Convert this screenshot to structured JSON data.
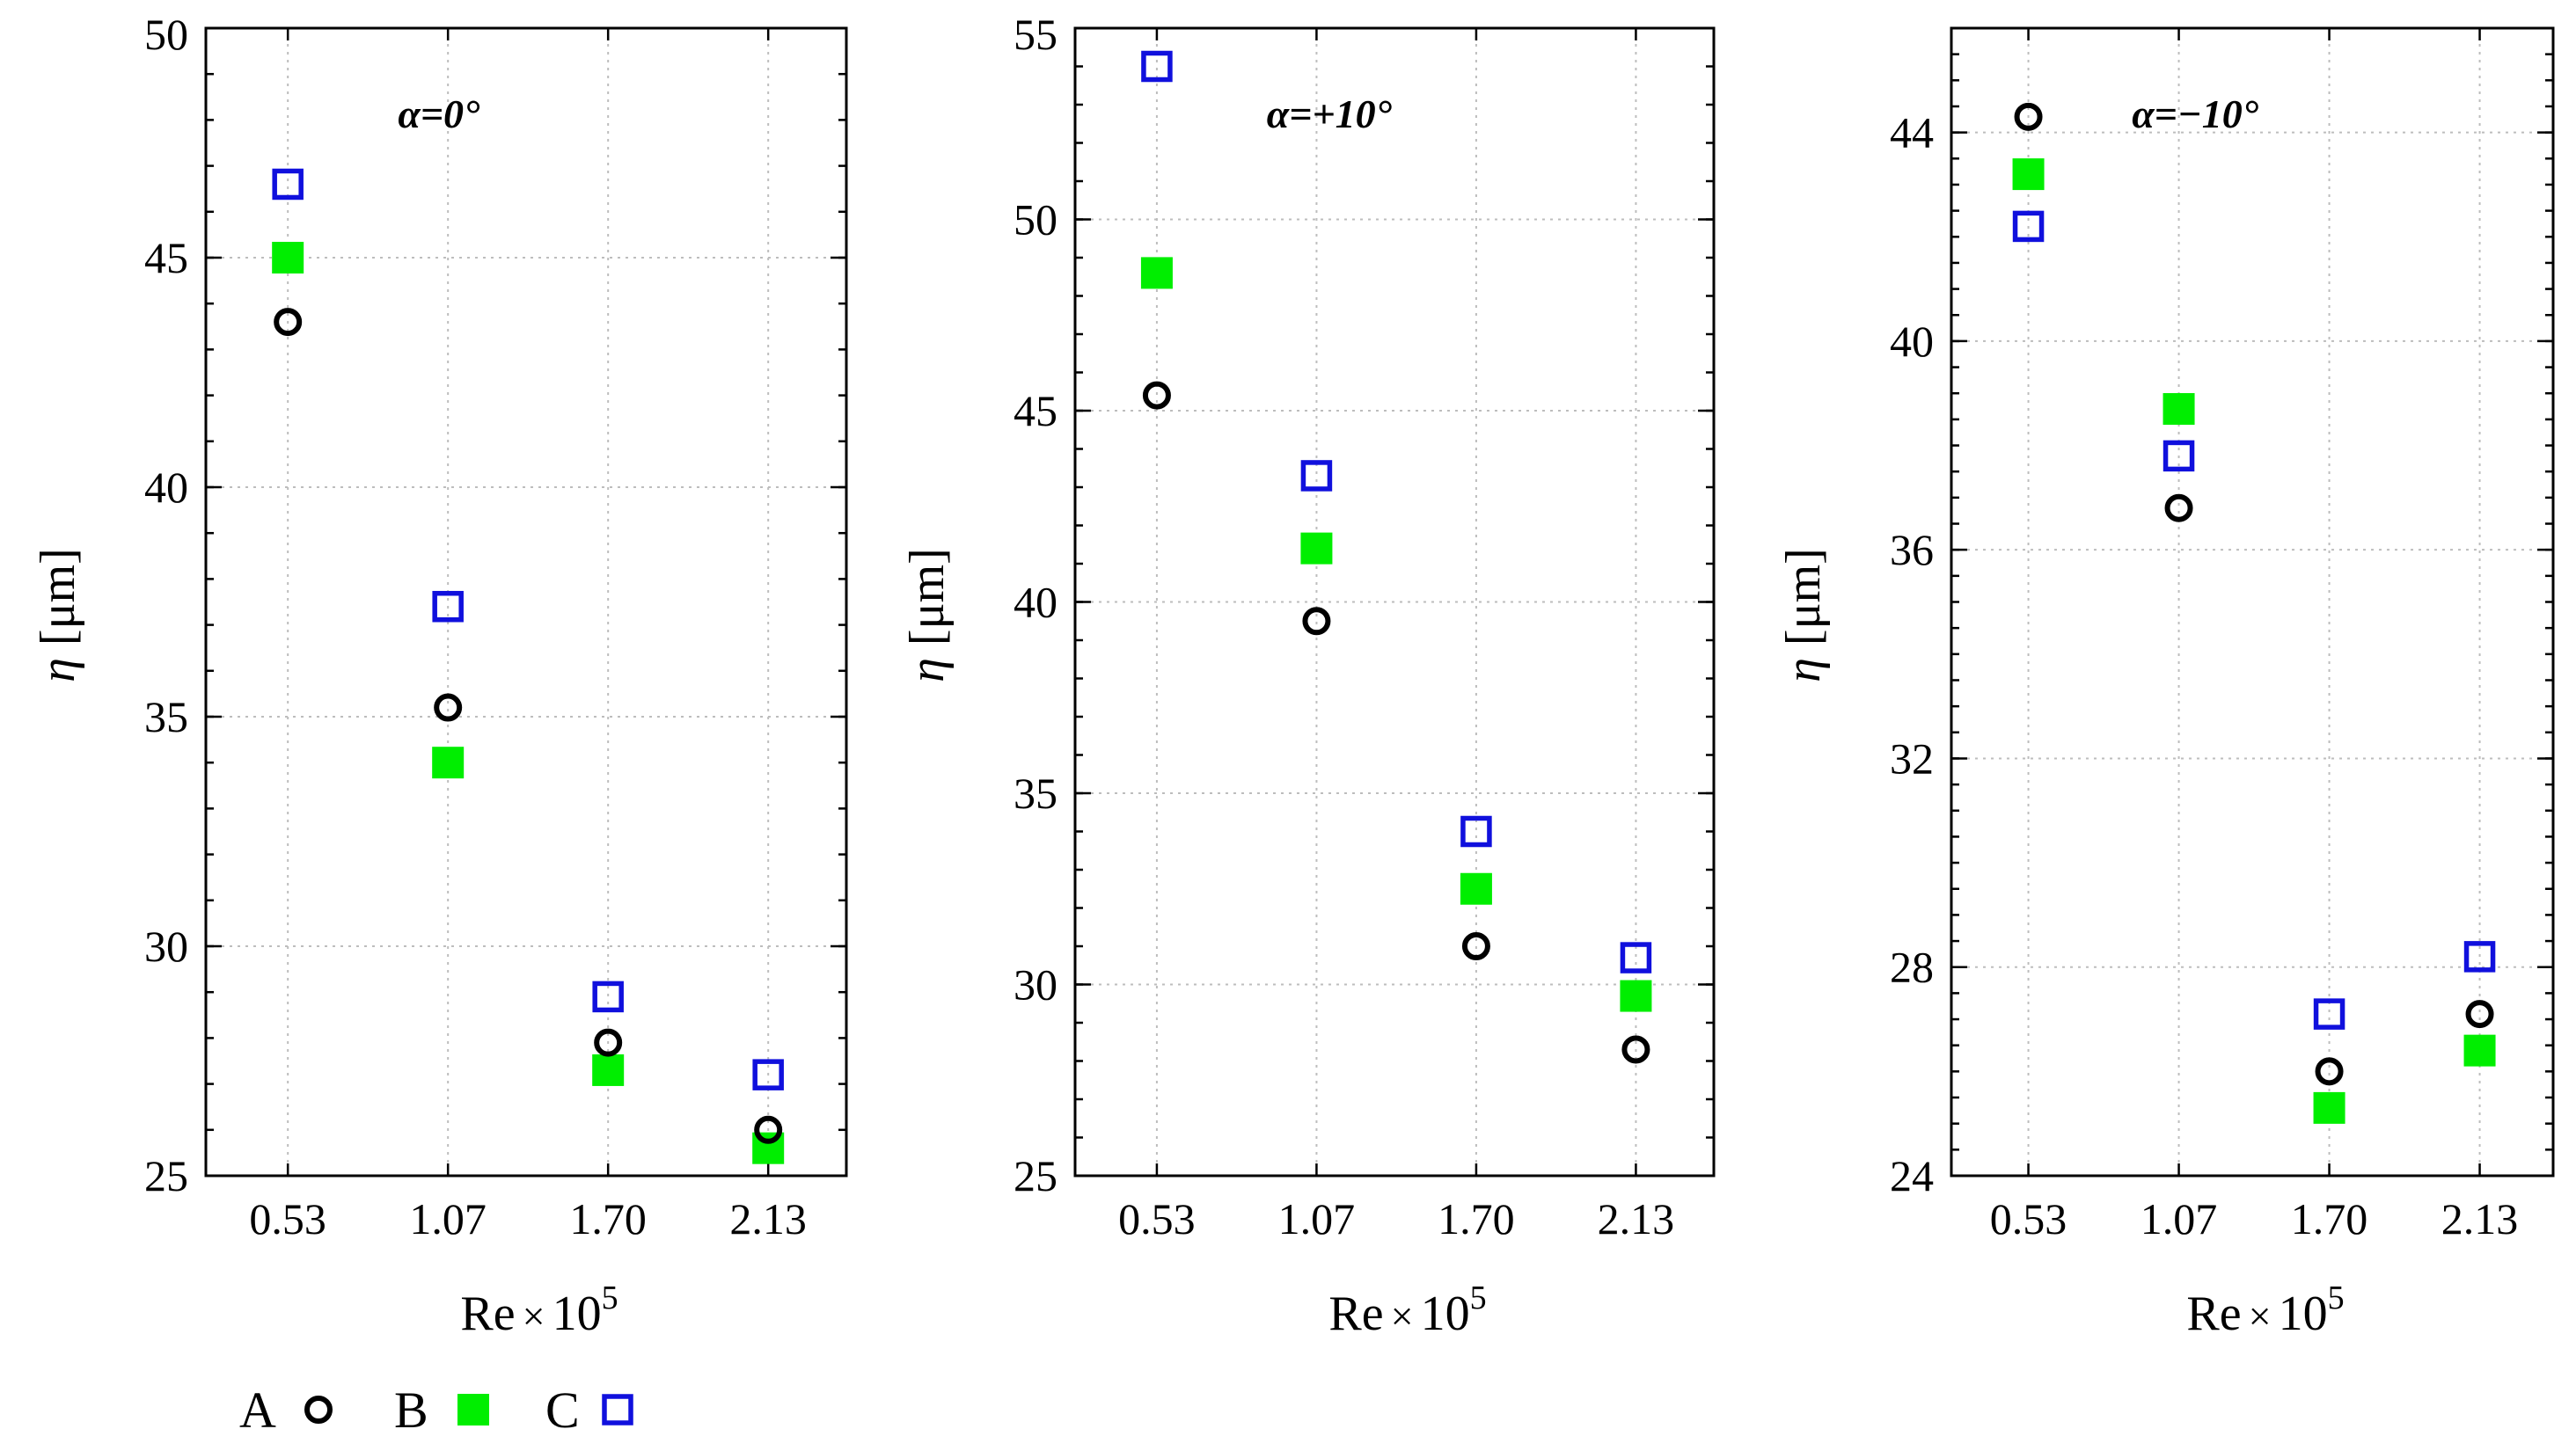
{
  "chart_data": [
    {
      "type": "scatter",
      "title": "α=0°",
      "title_parts": [
        "α",
        "=0°"
      ],
      "xlabel": "Re×10",
      "xlabel_parts": [
        "Re",
        "×",
        "10",
        "5"
      ],
      "ylabel_parts": [
        "η",
        "[μm]"
      ],
      "categories": [
        "0.53",
        "1.07",
        "1.70",
        "2.13"
      ],
      "ylim": [
        25,
        50
      ],
      "yticks": [
        25,
        30,
        35,
        40,
        45,
        50
      ],
      "yminor_step": 1,
      "series": [
        {
          "name": "A",
          "marker": "open-circle",
          "color": "#000000",
          "values": [
            43.6,
            35.2,
            27.9,
            26.0
          ]
        },
        {
          "name": "B",
          "marker": "filled-square",
          "color": "#00ee00",
          "values": [
            45.0,
            34.0,
            27.3,
            25.6
          ]
        },
        {
          "name": "C",
          "marker": "open-square",
          "color": "#1010dd",
          "values": [
            46.6,
            37.4,
            28.9,
            27.2
          ]
        }
      ]
    },
    {
      "type": "scatter",
      "title": "α=+10°",
      "title_parts": [
        "α",
        "=+10°"
      ],
      "xlabel": "Re×10",
      "xlabel_parts": [
        "Re",
        "×",
        "10",
        "5"
      ],
      "ylabel_parts": [
        "η",
        "[μm]"
      ],
      "categories": [
        "0.53",
        "1.07",
        "1.70",
        "2.13"
      ],
      "ylim": [
        25,
        55
      ],
      "yticks": [
        25,
        30,
        35,
        40,
        45,
        50,
        55
      ],
      "yminor_step": 1,
      "series": [
        {
          "name": "A",
          "marker": "open-circle",
          "color": "#000000",
          "values": [
            45.4,
            39.5,
            31.0,
            28.3
          ]
        },
        {
          "name": "B",
          "marker": "filled-square",
          "color": "#00ee00",
          "values": [
            48.6,
            41.4,
            32.5,
            29.7
          ]
        },
        {
          "name": "C",
          "marker": "open-square",
          "color": "#1010dd",
          "values": [
            54.0,
            43.3,
            34.0,
            30.7
          ]
        }
      ]
    },
    {
      "type": "scatter",
      "title": "α=−10°",
      "title_parts": [
        "α",
        "=−10°"
      ],
      "xlabel": "Re×10",
      "xlabel_parts": [
        "Re",
        "×",
        "10",
        "5"
      ],
      "ylabel_parts": [
        "η",
        "[μm]"
      ],
      "categories": [
        "0.53",
        "1.07",
        "1.70",
        "2.13"
      ],
      "ylim": [
        24,
        46
      ],
      "yticks": [
        24,
        28,
        32,
        36,
        40,
        44
      ],
      "yminor_step": 0.5,
      "series": [
        {
          "name": "A",
          "marker": "open-circle",
          "color": "#000000",
          "values": [
            44.3,
            36.8,
            26.0,
            27.1
          ]
        },
        {
          "name": "B",
          "marker": "filled-square",
          "color": "#00ee00",
          "values": [
            43.2,
            38.7,
            25.3,
            26.4
          ]
        },
        {
          "name": "C",
          "marker": "open-square",
          "color": "#1010dd",
          "values": [
            42.2,
            37.8,
            27.1,
            28.2
          ]
        }
      ]
    }
  ],
  "legend": {
    "position": "bottom-left",
    "items": [
      {
        "label": "A",
        "marker": "open-circle",
        "color": "#000000"
      },
      {
        "label": "B",
        "marker": "filled-square",
        "color": "#00ee00"
      },
      {
        "label": "C",
        "marker": "open-square",
        "color": "#1010dd"
      }
    ]
  }
}
